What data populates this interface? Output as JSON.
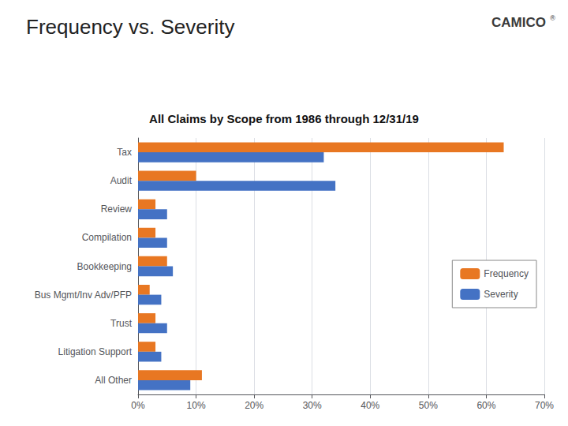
{
  "chart_data": {
    "type": "bar",
    "orientation": "horizontal",
    "title": "Frequency vs. Severity",
    "subtitle": "All Claims by Scope from 1986 through 12/31/19",
    "annotations": [
      "CAMICO",
      "®"
    ],
    "categories": [
      "Tax",
      "Audit",
      "Review",
      "Compilation",
      "Bookkeeping",
      "Bus Mgmt/Inv Adv/PFP",
      "Trust",
      "Litigation Support",
      "All Other"
    ],
    "series": [
      {
        "name": "Frequency",
        "color": "#E87722",
        "values": [
          0.63,
          0.1,
          0.03,
          0.03,
          0.05,
          0.02,
          0.03,
          0.03,
          0.11
        ]
      },
      {
        "name": "Severity",
        "color": "#4472C4",
        "values": [
          0.32,
          0.34,
          0.05,
          0.05,
          0.06,
          0.04,
          0.05,
          0.04,
          0.09
        ]
      }
    ],
    "xlim": [
      0,
      0.7
    ],
    "xticks": [
      {
        "value": 0.0,
        "label": "0%"
      },
      {
        "value": 0.1,
        "label": "10%"
      },
      {
        "value": 0.2,
        "label": "20%"
      },
      {
        "value": 0.3,
        "label": "30%"
      },
      {
        "value": 0.4,
        "label": "40%"
      },
      {
        "value": 0.5,
        "label": "50%"
      },
      {
        "value": 0.6,
        "label": "60%"
      },
      {
        "value": 0.7,
        "label": "70%"
      }
    ],
    "grid": true,
    "legend": "right"
  }
}
